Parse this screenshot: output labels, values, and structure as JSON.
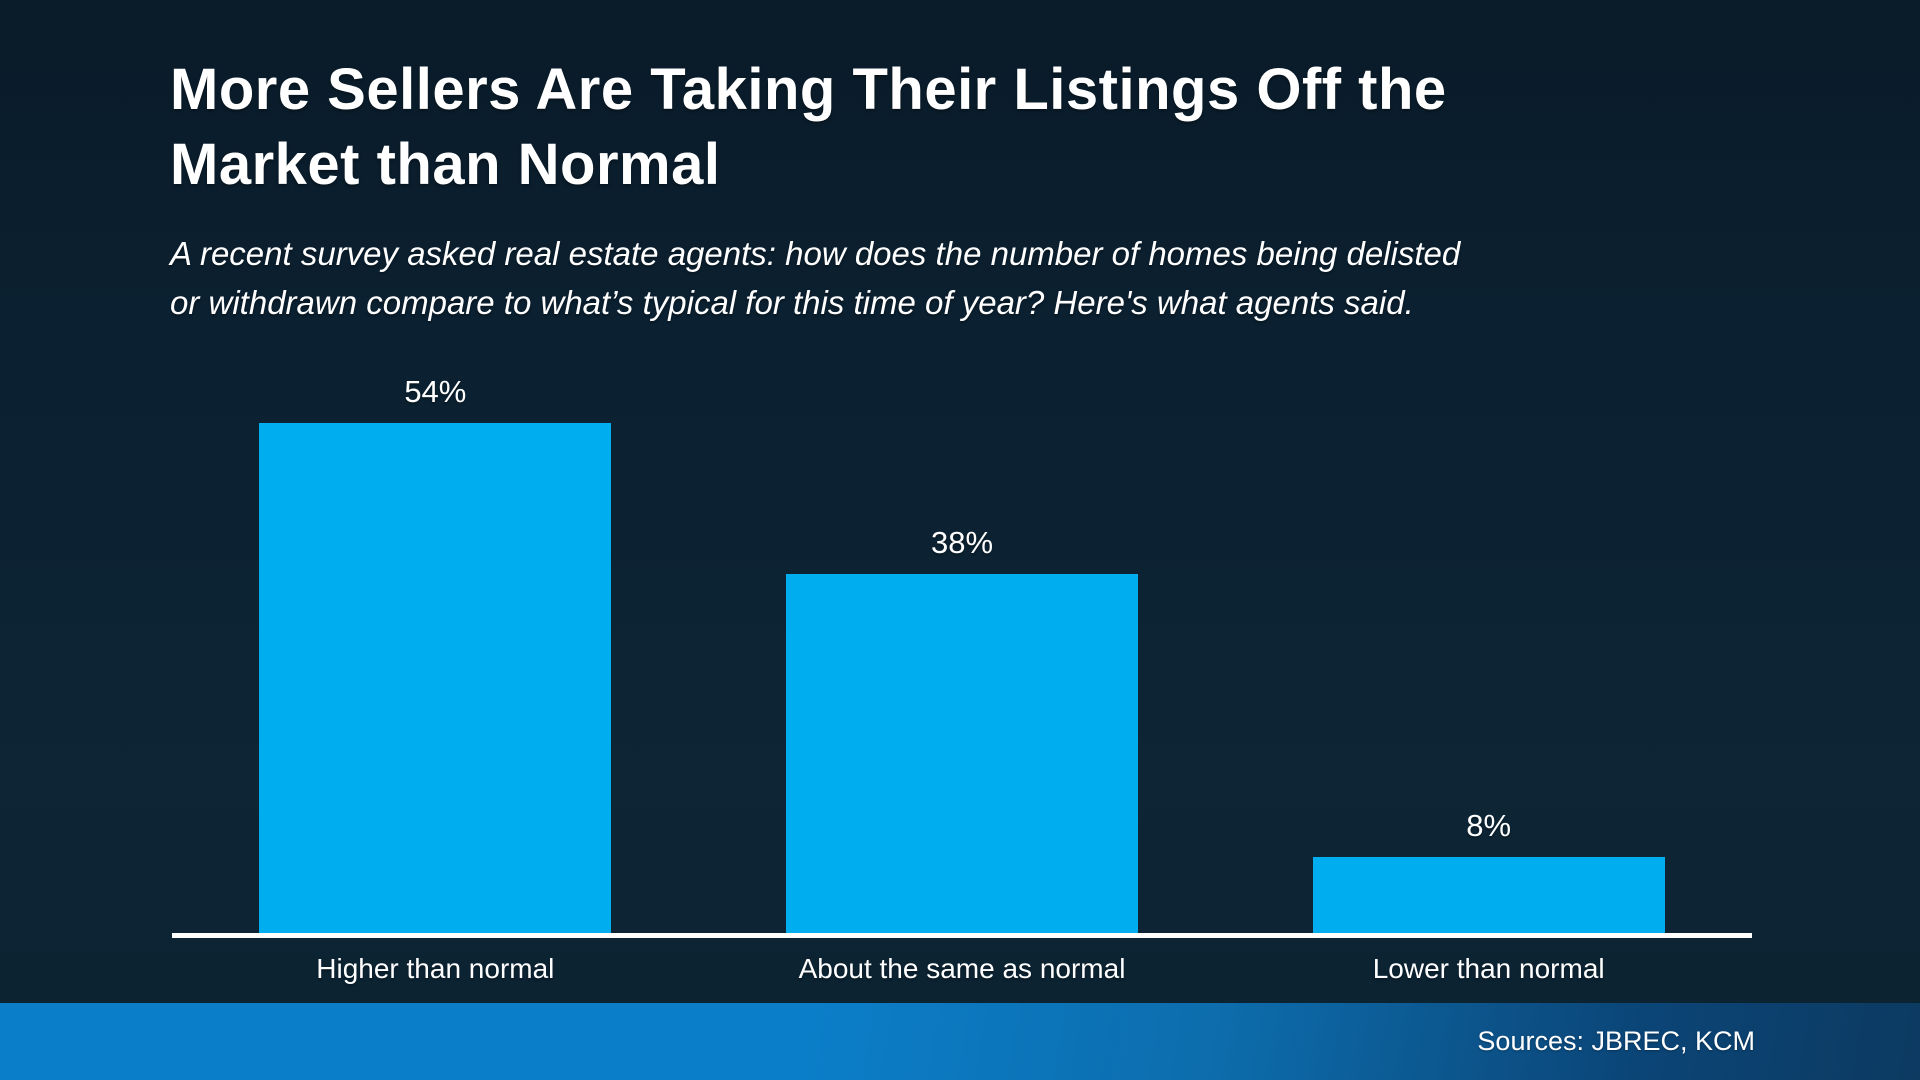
{
  "header": {
    "title_lines": [
      "More Sellers Are Taking Their Listings Off the",
      "Market than Normal"
    ],
    "subtitle_lines": [
      "A recent survey asked real estate agents: how does the number of homes being delisted",
      "or withdrawn compare to what’s typical for this time of year? Here's what agents said."
    ]
  },
  "chart_data": {
    "type": "bar",
    "title": "More Sellers Are Taking Their Listings Off the Market than Normal",
    "subtitle": "A recent survey asked real estate agents: how does the number of homes being delisted or withdrawn compare to what’s typical for this time of year? Here's what agents said.",
    "categories": [
      "Higher than normal",
      "About the same as normal",
      "Lower than normal"
    ],
    "values": [
      54,
      38,
      8
    ],
    "value_labels": [
      "54%",
      "38%",
      "8%"
    ],
    "ylim": [
      0,
      60
    ],
    "grid": false,
    "legend": false,
    "bar_color": "#00adee",
    "axis_color": "#ffffff"
  },
  "footer": {
    "sources": "Sources: JBREC, KCM"
  },
  "colors": {
    "background_top": "#0a1b29",
    "background_bottom": "#0d2535",
    "bar_accent": "#00adee",
    "footer_gradient_left": "#0b7ec9",
    "footer_gradient_right": "#0c3a61",
    "text": "#ffffff"
  }
}
